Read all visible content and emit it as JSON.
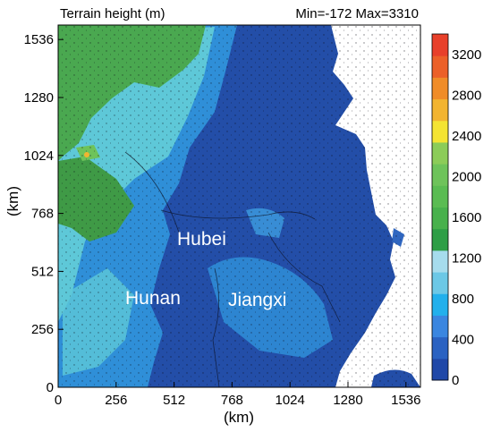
{
  "header": {
    "title": "Terrain height (m)",
    "stats": "Min=-172 Max=3310"
  },
  "axes": {
    "xlabel": "(km)",
    "ylabel": "(km)",
    "x_ticks": [
      "0",
      "256",
      "512",
      "768",
      "1024",
      "1280",
      "1536"
    ],
    "y_ticks": [
      "0",
      "256",
      "512",
      "768",
      "1024",
      "1280",
      "1536"
    ]
  },
  "regions": [
    {
      "label": "Hubei"
    },
    {
      "label": "Hunan"
    },
    {
      "label": "Jiangxi"
    }
  ],
  "colorbar": {
    "tick_labels": [
      "0",
      "400",
      "800",
      "1200",
      "1600",
      "2000",
      "2400",
      "2800",
      "3200"
    ],
    "colors": [
      "#2048a8",
      "#2a62c2",
      "#3a86e0",
      "#22b0ec",
      "#6cc8e6",
      "#a6dced",
      "#2e9e46",
      "#48b14c",
      "#5abc52",
      "#6ec35a",
      "#8ccc58",
      "#f4e432",
      "#f2b430",
      "#f08c28",
      "#ec6028",
      "#e8402a"
    ]
  },
  "colors": {
    "ocean": "#ffffff",
    "lowland": "#234ea8",
    "hills": "#2f8fd8",
    "highland": "#5ec8d8",
    "mountain": "#4aa850"
  }
}
